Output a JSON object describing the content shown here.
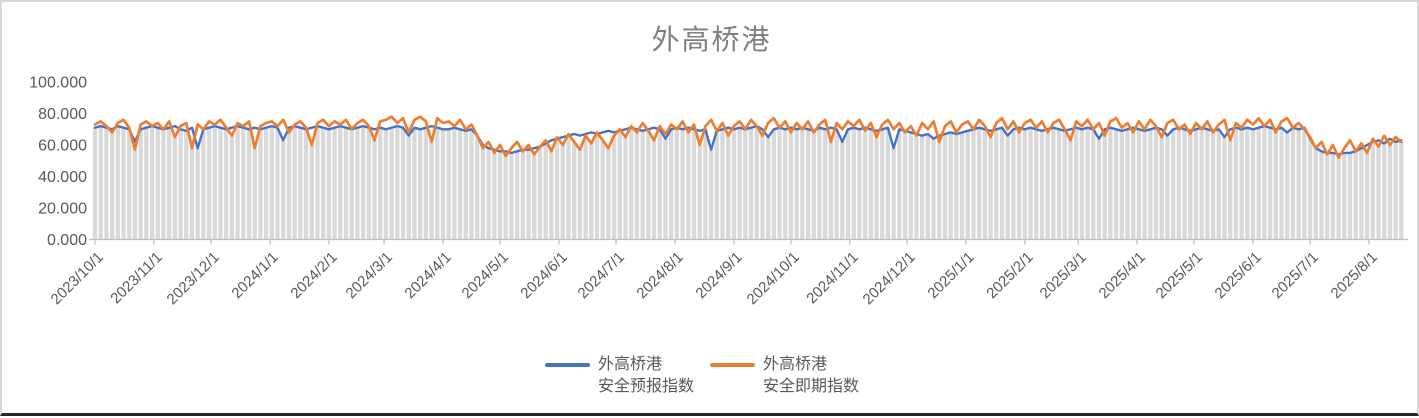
{
  "title": {
    "text": "外高桥港",
    "color": "#7f7f7f"
  },
  "legend": {
    "items": [
      {
        "line1": "外高桥港",
        "line2": "安全预报指数",
        "color": "#4472C4"
      },
      {
        "line1": "外高桥港",
        "line2": "安全即期指数",
        "color": "#ED7D31"
      }
    ]
  },
  "chart_data": {
    "type": "line",
    "title": "外高桥港",
    "xlabel": "",
    "ylabel": "",
    "ylim": [
      0,
      100
    ],
    "grid": false,
    "legend_position": "bottom-center",
    "background_bars_color": "#d9d9d9",
    "axis_color": "#bfbfbf",
    "x_start_date": "2023/10/1",
    "x_end_date": "2025/8/18",
    "step_days": 3,
    "y_ticks": [
      {
        "label": "100.000",
        "value": 100
      },
      {
        "label": "80.000",
        "value": 80
      },
      {
        "label": "60.000",
        "value": 60
      },
      {
        "label": "40.000",
        "value": 40
      },
      {
        "label": "20.000",
        "value": 20
      },
      {
        "label": "0.000",
        "value": 0
      }
    ],
    "x_ticks": [
      {
        "label": "2023/10/1",
        "day": 0
      },
      {
        "label": "2023/11/1",
        "day": 31
      },
      {
        "label": "2023/12/1",
        "day": 61
      },
      {
        "label": "2024/1/1",
        "day": 92
      },
      {
        "label": "2024/2/1",
        "day": 123
      },
      {
        "label": "2024/3/1",
        "day": 152
      },
      {
        "label": "2024/4/1",
        "day": 183
      },
      {
        "label": "2024/5/1",
        "day": 213
      },
      {
        "label": "2024/6/1",
        "day": 244
      },
      {
        "label": "2024/7/1",
        "day": 274
      },
      {
        "label": "2024/8/1",
        "day": 305
      },
      {
        "label": "2024/9/1",
        "day": 336
      },
      {
        "label": "2024/10/1",
        "day": 366
      },
      {
        "label": "2024/11/1",
        "day": 397
      },
      {
        "label": "2024/12/1",
        "day": 427
      },
      {
        "label": "2025/1/1",
        "day": 458
      },
      {
        "label": "2025/2/1",
        "day": 489
      },
      {
        "label": "2025/3/1",
        "day": 517
      },
      {
        "label": "2025/4/1",
        "day": 548
      },
      {
        "label": "2025/5/1",
        "day": 578
      },
      {
        "label": "2025/6/1",
        "day": 609
      },
      {
        "label": "2025/7/1",
        "day": 639
      },
      {
        "label": "2025/8/1",
        "day": 670
      }
    ],
    "series": [
      {
        "name": "外高桥港安全预报指数",
        "color": "#4472C4",
        "values": [
          71,
          72,
          71,
          70,
          72,
          71,
          70,
          62,
          70,
          71,
          72,
          71,
          70,
          71,
          72,
          70,
          69,
          71,
          58,
          70,
          71,
          72,
          71,
          70,
          71,
          72,
          71,
          70,
          71,
          70,
          71,
          72,
          71,
          63,
          71,
          72,
          71,
          70,
          71,
          72,
          71,
          70,
          71,
          72,
          71,
          70,
          71,
          72,
          71,
          70,
          71,
          70,
          71,
          72,
          71,
          66,
          71,
          70,
          71,
          72,
          71,
          70,
          70,
          71,
          70,
          69,
          70,
          66,
          60,
          58,
          57,
          56,
          56,
          55,
          56,
          57,
          57,
          58,
          59,
          61,
          63,
          64,
          65,
          66,
          67,
          66,
          67,
          68,
          67,
          68,
          69,
          68,
          69,
          70,
          71,
          70,
          69,
          70,
          71,
          70,
          64,
          70,
          71,
          70,
          71,
          70,
          69,
          70,
          57,
          69,
          70,
          71,
          70,
          71,
          70,
          71,
          72,
          70,
          65,
          70,
          71,
          70,
          71,
          70,
          71,
          70,
          69,
          71,
          70,
          71,
          70,
          62,
          70,
          71,
          70,
          71,
          70,
          69,
          70,
          71,
          58,
          70,
          69,
          68,
          67,
          66,
          67,
          64,
          66,
          67,
          68,
          67,
          68,
          69,
          70,
          71,
          70,
          69,
          70,
          71,
          66,
          70,
          71,
          70,
          71,
          70,
          69,
          70,
          71,
          70,
          69,
          70,
          71,
          70,
          71,
          70,
          64,
          70,
          71,
          70,
          69,
          70,
          71,
          70,
          69,
          70,
          71,
          70,
          66,
          70,
          71,
          70,
          69,
          70,
          71,
          70,
          69,
          70,
          65,
          70,
          71,
          70,
          71,
          70,
          71,
          72,
          71,
          70,
          71,
          68,
          71,
          70,
          71,
          64,
          58,
          56,
          55,
          55,
          54,
          55,
          55,
          56,
          58,
          60,
          62,
          63,
          61,
          64,
          62,
          63
        ]
      },
      {
        "name": "外高桥港安全即期指数",
        "color": "#ED7D31",
        "values": [
          73,
          75,
          72,
          68,
          74,
          76,
          71,
          57,
          73,
          75,
          72,
          74,
          70,
          75,
          65,
          72,
          74,
          58,
          73,
          70,
          75,
          73,
          76,
          71,
          66,
          74,
          72,
          75,
          58,
          72,
          74,
          75,
          72,
          76,
          68,
          73,
          75,
          71,
          60,
          74,
          76,
          72,
          75,
          73,
          76,
          70,
          74,
          76,
          72,
          63,
          75,
          76,
          78,
          74,
          77,
          68,
          76,
          78,
          75,
          62,
          77,
          74,
          75,
          72,
          76,
          70,
          73,
          66,
          58,
          62,
          55,
          60,
          53,
          58,
          62,
          56,
          60,
          54,
          59,
          63,
          56,
          65,
          60,
          67,
          62,
          57,
          66,
          61,
          68,
          63,
          58,
          66,
          70,
          65,
          72,
          68,
          74,
          69,
          63,
          72,
          67,
          73,
          70,
          75,
          68,
          73,
          60,
          72,
          76,
          69,
          74,
          66,
          72,
          75,
          70,
          76,
          72,
          66,
          74,
          77,
          71,
          75,
          68,
          74,
          70,
          75,
          68,
          73,
          76,
          62,
          74,
          70,
          75,
          72,
          76,
          69,
          74,
          65,
          73,
          76,
          70,
          74,
          68,
          72,
          66,
          74,
          70,
          75,
          62,
          72,
          75,
          68,
          73,
          75,
          70,
          76,
          72,
          65,
          74,
          77,
          70,
          75,
          68,
          74,
          76,
          71,
          75,
          68,
          74,
          76,
          70,
          63,
          75,
          72,
          76,
          70,
          74,
          66,
          75,
          77,
          71,
          74,
          68,
          75,
          70,
          76,
          72,
          65,
          74,
          76,
          70,
          73,
          67,
          74,
          70,
          75,
          68,
          73,
          76,
          63,
          74,
          71,
          76,
          73,
          77,
          72,
          76,
          68,
          75,
          77,
          71,
          74,
          70,
          65,
          58,
          62,
          54,
          60,
          52,
          58,
          63,
          56,
          61,
          55,
          64,
          59,
          66,
          60,
          65,
          62
        ]
      }
    ],
    "background_bars": "one gray column per data point from 0 up to min(series1, series2)"
  }
}
